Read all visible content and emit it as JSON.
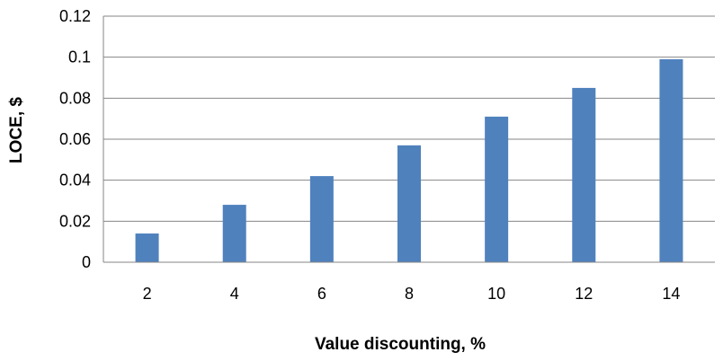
{
  "chart_data": {
    "type": "bar",
    "title": "",
    "xlabel": "Value discounting, %",
    "ylabel": "LOCE, $",
    "categories": [
      "2",
      "4",
      "6",
      "8",
      "10",
      "12",
      "14"
    ],
    "values": [
      0.014,
      0.028,
      0.042,
      0.057,
      0.071,
      0.085,
      0.099
    ],
    "ylim": [
      0,
      0.12
    ],
    "yticks": [
      "0",
      "0.02",
      "0.04",
      "0.06",
      "0.08",
      "0.1",
      "0.12"
    ],
    "grid": true,
    "legend": "none",
    "bar_color": "#4F81BD",
    "grid_color": "#868686"
  }
}
